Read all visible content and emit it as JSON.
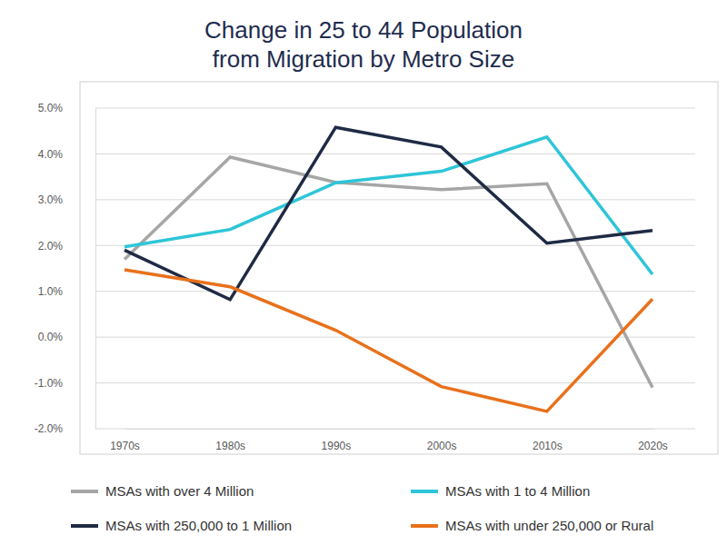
{
  "chart_data": {
    "type": "line",
    "title": "Change in 25 to 44 Population\nfrom Migration by Metro Size",
    "categories": [
      "1970s",
      "1980s",
      "1990s",
      "2000s",
      "2010s",
      "2020s"
    ],
    "series": [
      {
        "name": "MSAs with over 4 Million",
        "color": "#a6a6a6",
        "values": [
          1.7,
          3.93,
          3.38,
          3.22,
          3.35,
          -1.1
        ]
      },
      {
        "name": "MSAs with 1 to 4 Million",
        "color": "#2ec5d8",
        "values": [
          1.97,
          2.35,
          3.37,
          3.62,
          4.37,
          1.37
        ]
      },
      {
        "name": "MSAs with 250,000 to 1 Million",
        "color": "#1f2a44",
        "values": [
          1.9,
          0.82,
          4.58,
          4.15,
          2.05,
          2.33
        ]
      },
      {
        "name": "MSAs with under 250,000 or Rural",
        "color": "#e8711c",
        "values": [
          1.47,
          1.1,
          0.15,
          -1.08,
          -1.62,
          0.83
        ]
      }
    ],
    "ylim": [
      -2,
      5
    ],
    "yticks": [
      {
        "value": -2,
        "label": "-2.0%"
      },
      {
        "value": -1,
        "label": "-1.0%"
      },
      {
        "value": 0,
        "label": "0.0%"
      },
      {
        "value": 1,
        "label": "1.0%"
      },
      {
        "value": 2,
        "label": "2.0%"
      },
      {
        "value": 3,
        "label": "3.0%"
      },
      {
        "value": 4,
        "label": "4.0%"
      },
      {
        "value": 5,
        "label": "5.0%"
      }
    ],
    "grid": true,
    "legend": "bottom"
  }
}
